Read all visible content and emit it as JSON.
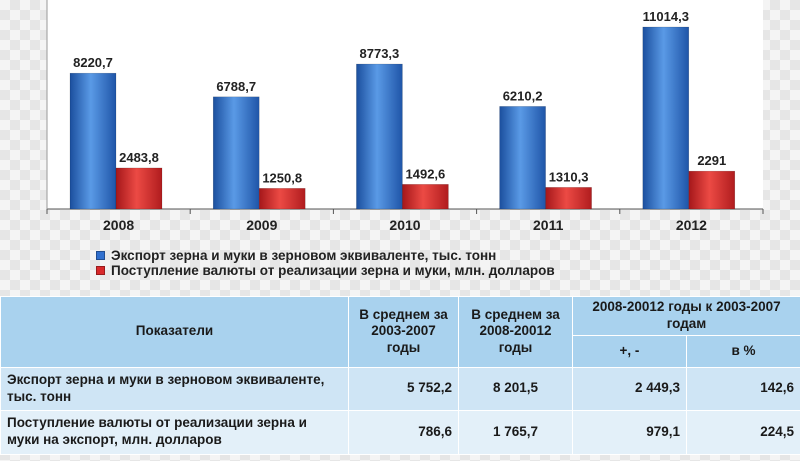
{
  "chart_data": {
    "type": "bar",
    "categories": [
      "2008",
      "2009",
      "2010",
      "2011",
      "2012"
    ],
    "series": [
      {
        "name": "Экспорт зерна и муки в зерновом эквиваленте, тыс. тонн",
        "color": "#2f6fce",
        "values": [
          8220.7,
          6788.7,
          8773.3,
          6210.2,
          11014.3
        ],
        "labels": [
          "8220,7",
          "6788,7",
          "8773,3",
          "6210,2",
          "11014,3"
        ]
      },
      {
        "name": "Поступление валюты от реализации зерна и муки, млн. долларов",
        "color": "#d8282a",
        "values": [
          2483.8,
          1250.8,
          1492.6,
          1310.3,
          2291
        ],
        "labels": [
          "2483,8",
          "1250,8",
          "1492,6",
          "1310,3",
          "2291"
        ]
      }
    ],
    "ylim": [
      0,
      11014.3
    ],
    "grid": false,
    "legend": "bottom"
  },
  "table": {
    "header": {
      "col1": "Показатели",
      "col2": "В среднем за 2003-2007 годы",
      "col3": "В среднем за 2008-20012 годы",
      "col45": "2008-20012 годы к  2003-2007 годам",
      "col4": "+, -",
      "col5": "в %"
    },
    "rows": [
      {
        "label": "Экспорт зерна и муки в зерновом эквиваленте, тыс. тонн",
        "avg_2003_2007": "5 752,2",
        "avg_2008_2012": "8 201,5",
        "diff": "2 449,3",
        "pct": "142,6"
      },
      {
        "label": "Поступление валюты от реализации зерна и муки на экспорт, млн. долларов",
        "avg_2003_2007": "786,6",
        "avg_2008_2012": "1 765,7",
        "diff": "979,1",
        "pct": "224,5"
      }
    ]
  }
}
